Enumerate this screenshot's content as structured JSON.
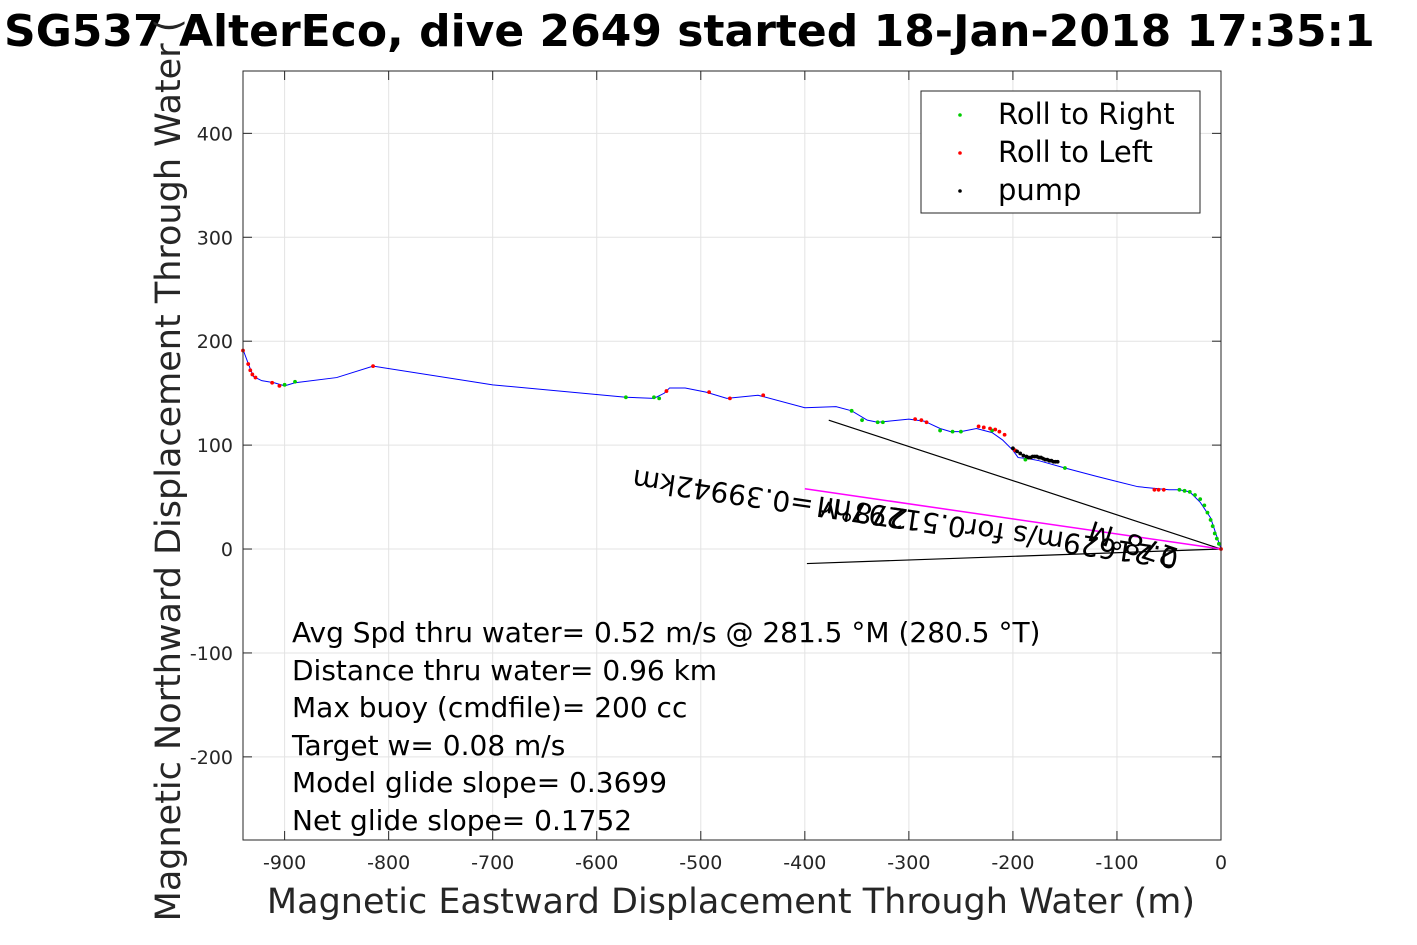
{
  "chart_data": {
    "type": "scatter",
    "title": "SG537 AlterEco, dive 2649 started 18-Jan-2018 17:35:1",
    "xlabel": "Magnetic Eastward Displacement Through Water (m)",
    "ylabel": "Magnetic Northward Displacement Through Water (",
    "xlim": [
      -940,
      0
    ],
    "ylim": [
      -280,
      460
    ],
    "xticks": [
      -900,
      -800,
      -700,
      -600,
      -500,
      -400,
      -300,
      -200,
      -100,
      0
    ],
    "yticks": [
      -200,
      -100,
      0,
      100,
      200,
      300,
      400
    ],
    "grid": true,
    "legend_position": "top-right",
    "legend": [
      {
        "label": "Roll to Right",
        "color": "#00cc00"
      },
      {
        "label": "Roll to Left",
        "color": "#ff0000"
      },
      {
        "label": "pump",
        "color": "#000000"
      }
    ],
    "track": {
      "name": "track",
      "color": "#0000ff",
      "x": [
        0,
        -5,
        -10,
        -20,
        -30,
        -40,
        -50,
        -60,
        -80,
        -100,
        -120,
        -150,
        -175,
        -185,
        -195,
        -200,
        -210,
        -220,
        -235,
        -250,
        -260,
        -270,
        -285,
        -300,
        -320,
        -330,
        -340,
        -355,
        -370,
        -400,
        -445,
        -475,
        -495,
        -515,
        -530,
        -535,
        -545,
        -572,
        -700,
        -815,
        -850,
        -890,
        -900,
        -910,
        -922,
        -930,
        -934,
        -940
      ],
      "y": [
        0,
        15,
        30,
        45,
        55,
        57,
        57,
        58,
        60,
        65,
        70,
        78,
        85,
        87,
        88,
        95,
        105,
        112,
        116,
        113,
        113,
        116,
        123,
        125,
        123,
        122,
        124,
        133,
        137,
        136,
        148,
        145,
        151,
        155,
        155,
        150,
        145,
        146,
        158,
        176,
        165,
        160,
        157,
        160,
        162,
        166,
        176,
        192
      ]
    },
    "roll_right_points": {
      "x": [
        -2,
        -4,
        -6,
        -8,
        -10,
        -13,
        -16,
        -20,
        -25,
        -30,
        -35,
        -40,
        -150,
        -188,
        -220,
        -250,
        -258,
        -270,
        -325,
        -330,
        -345,
        -355,
        -540,
        -545,
        -572,
        -890,
        -900
      ],
      "y": [
        5,
        10,
        15,
        22,
        28,
        35,
        42,
        48,
        52,
        55,
        56,
        57,
        78,
        86,
        114,
        113,
        113,
        114,
        122,
        122,
        124,
        133,
        145,
        146,
        146,
        161,
        158
      ]
    },
    "roll_left_points": {
      "x": [
        0,
        -55,
        -60,
        -64,
        -208,
        -213,
        -217,
        -222,
        -228,
        -233,
        -283,
        -288,
        -294,
        -198,
        -440,
        -472,
        -492,
        -533,
        -815,
        -905,
        -912,
        -928,
        -931,
        -933,
        -935,
        -940
      ],
      "y": [
        0,
        57,
        57,
        57,
        110,
        113,
        115,
        116,
        117,
        118,
        122,
        124,
        125,
        95,
        148,
        145,
        151,
        152,
        176,
        157,
        160,
        165,
        168,
        172,
        178,
        191
      ]
    },
    "pump_points": {
      "x": [
        -200,
        -196,
        -193,
        -190,
        -187,
        -185,
        -183,
        -181,
        -179,
        -177,
        -175,
        -173,
        -171,
        -169,
        -167,
        -165,
        -163,
        -161,
        -159,
        -157
      ],
      "y": [
        97,
        94,
        92,
        90,
        89,
        88,
        88,
        89,
        89,
        89,
        88,
        88,
        87,
        86,
        86,
        85,
        85,
        84,
        84,
        84
      ]
    },
    "current_line": {
      "name": "current",
      "color": "#ff00ff",
      "x": [
        0,
        -400
      ],
      "y": [
        0,
        58
      ]
    },
    "heading_lines": [
      {
        "x": [
          0,
          -377
        ],
        "y": [
          0,
          124
        ]
      },
      {
        "x": [
          0,
          -398
        ],
        "y": [
          0,
          -14
        ]
      }
    ],
    "rotated_annotations": [
      {
        "text": "0.21629m/s for0.51297hr =0.39942km",
        "x": -40,
        "y": 0,
        "angle_deg": 188.3
      },
      {
        "text": "278°M",
        "x": -40,
        "y": 0,
        "angle_deg": 198.2
      },
      {
        "text": "278°M",
        "x": -300,
        "y": 38,
        "angle_deg": 188.3
      }
    ],
    "annotations": [
      "Avg Spd thru water=  0.52 m/s @ 281.5 °M (280.5 °T)",
      "Distance thru water=  0.96 km",
      "Max buoy (cmdfile)= 200 cc",
      "Target w= 0.08 m/s",
      "Model glide slope= 0.3699",
      "Net glide slope= 0.1752"
    ]
  }
}
